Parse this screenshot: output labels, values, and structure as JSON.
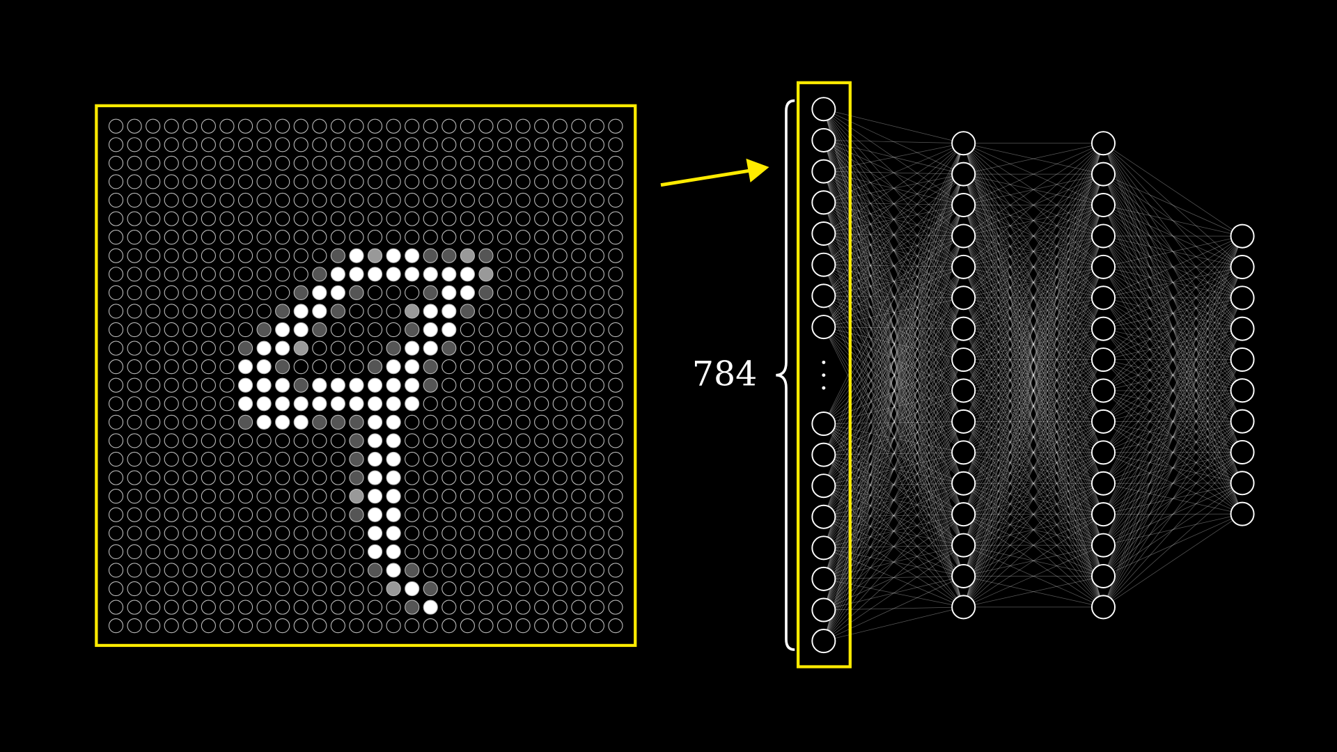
{
  "label": "784"
}
